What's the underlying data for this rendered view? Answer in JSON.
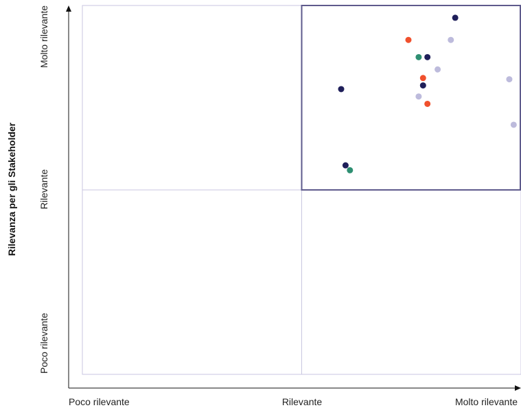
{
  "chart_data": {
    "type": "scatter",
    "title": "",
    "xlabel": "",
    "ylabel": "Rilevanza per gli Stakeholder",
    "xlim": [
      0,
      3
    ],
    "ylim": [
      0,
      3
    ],
    "x_ticks": [
      "Poco rilevante",
      "Rilevante",
      "Molto rilevante"
    ],
    "y_ticks": [
      "Poco rilevante",
      "Rilevante",
      "Molto rilevante"
    ],
    "highlight_region": {
      "x": [
        1.5,
        3
      ],
      "y": [
        1.5,
        3
      ]
    },
    "grid": true,
    "colors": {
      "navy": "#1f1f5a",
      "orange": "#f0502d",
      "green": "#2e8f72",
      "lavender": "#bdbbdc",
      "frame": "#c8c6e0",
      "highlight": "#5e5a8c"
    },
    "points": [
      {
        "x": 2.55,
        "y": 2.9,
        "color": "navy"
      },
      {
        "x": 2.23,
        "y": 2.72,
        "color": "orange"
      },
      {
        "x": 2.52,
        "y": 2.72,
        "color": "lavender"
      },
      {
        "x": 2.3,
        "y": 2.58,
        "color": "green"
      },
      {
        "x": 2.36,
        "y": 2.58,
        "color": "navy"
      },
      {
        "x": 2.43,
        "y": 2.48,
        "color": "lavender"
      },
      {
        "x": 2.33,
        "y": 2.41,
        "color": "orange"
      },
      {
        "x": 2.33,
        "y": 2.35,
        "color": "navy"
      },
      {
        "x": 2.92,
        "y": 2.4,
        "color": "lavender"
      },
      {
        "x": 1.77,
        "y": 2.32,
        "color": "navy"
      },
      {
        "x": 2.3,
        "y": 2.26,
        "color": "lavender"
      },
      {
        "x": 2.36,
        "y": 2.2,
        "color": "orange"
      },
      {
        "x": 2.95,
        "y": 2.03,
        "color": "lavender"
      },
      {
        "x": 1.8,
        "y": 1.7,
        "color": "navy"
      },
      {
        "x": 1.83,
        "y": 1.66,
        "color": "green"
      }
    ]
  }
}
